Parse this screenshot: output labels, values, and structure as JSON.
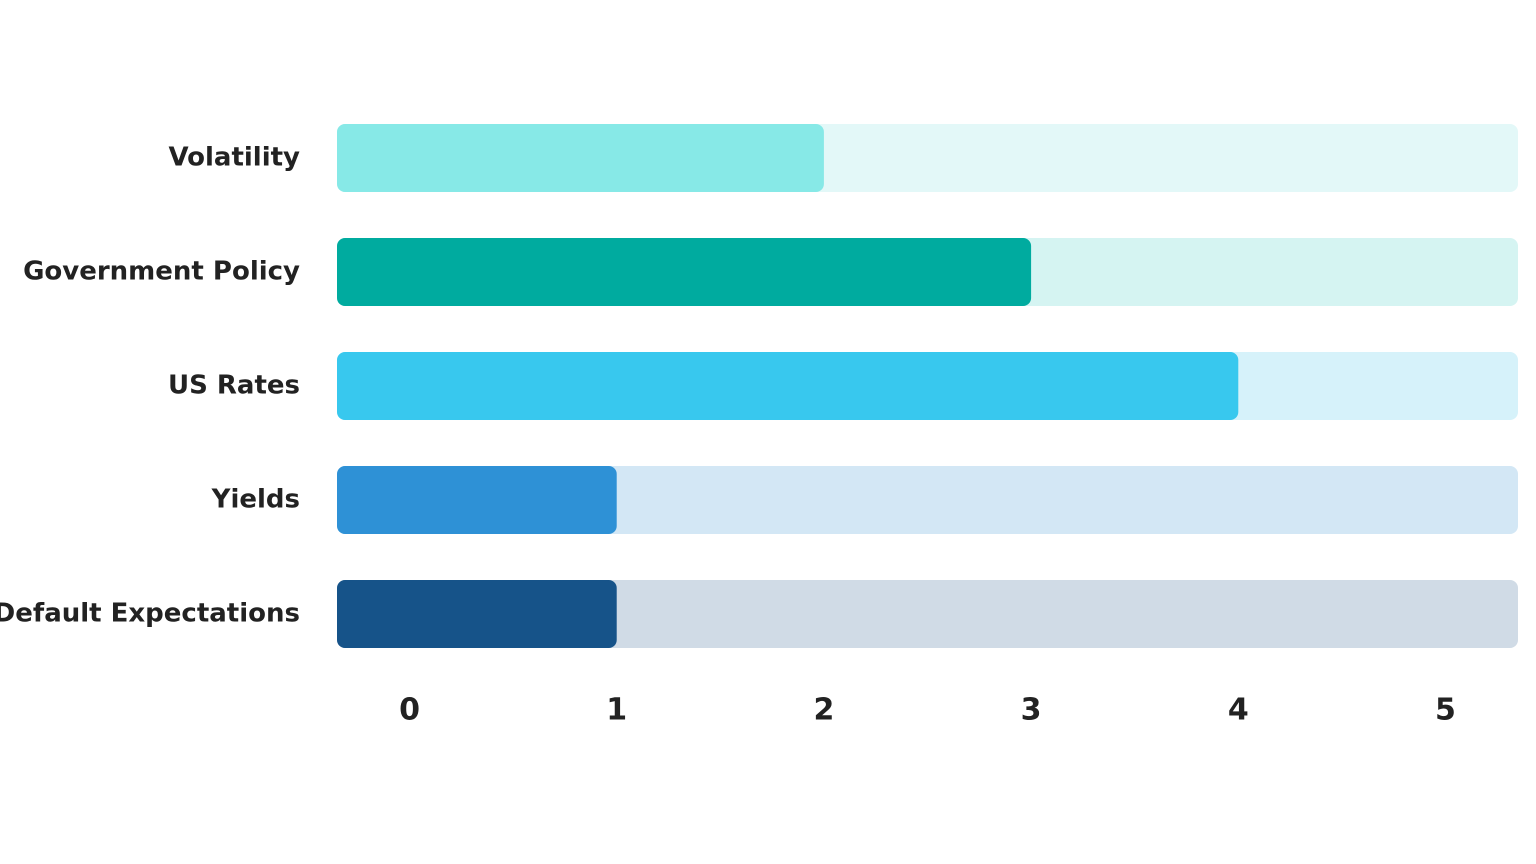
{
  "chart_data": {
    "type": "hbar",
    "categories": [
      "Volatility",
      "Government Policy",
      "US Rates",
      "Yields",
      "Default Expectations"
    ],
    "values": [
      2,
      3,
      4,
      1,
      1
    ],
    "colors": [
      "#87e9e7",
      "#00ab9f",
      "#38c8ee",
      "#2e91d6",
      "#165389"
    ],
    "track_colors": [
      "#e3f8f8",
      "#d5f4f2",
      "#d6f2fa",
      "#d3e7f5",
      "#d0dbe6"
    ],
    "xlim": [
      -0.35,
      5.35
    ],
    "xticks": [
      0,
      1,
      2,
      3,
      4,
      5
    ],
    "grid": false
  }
}
